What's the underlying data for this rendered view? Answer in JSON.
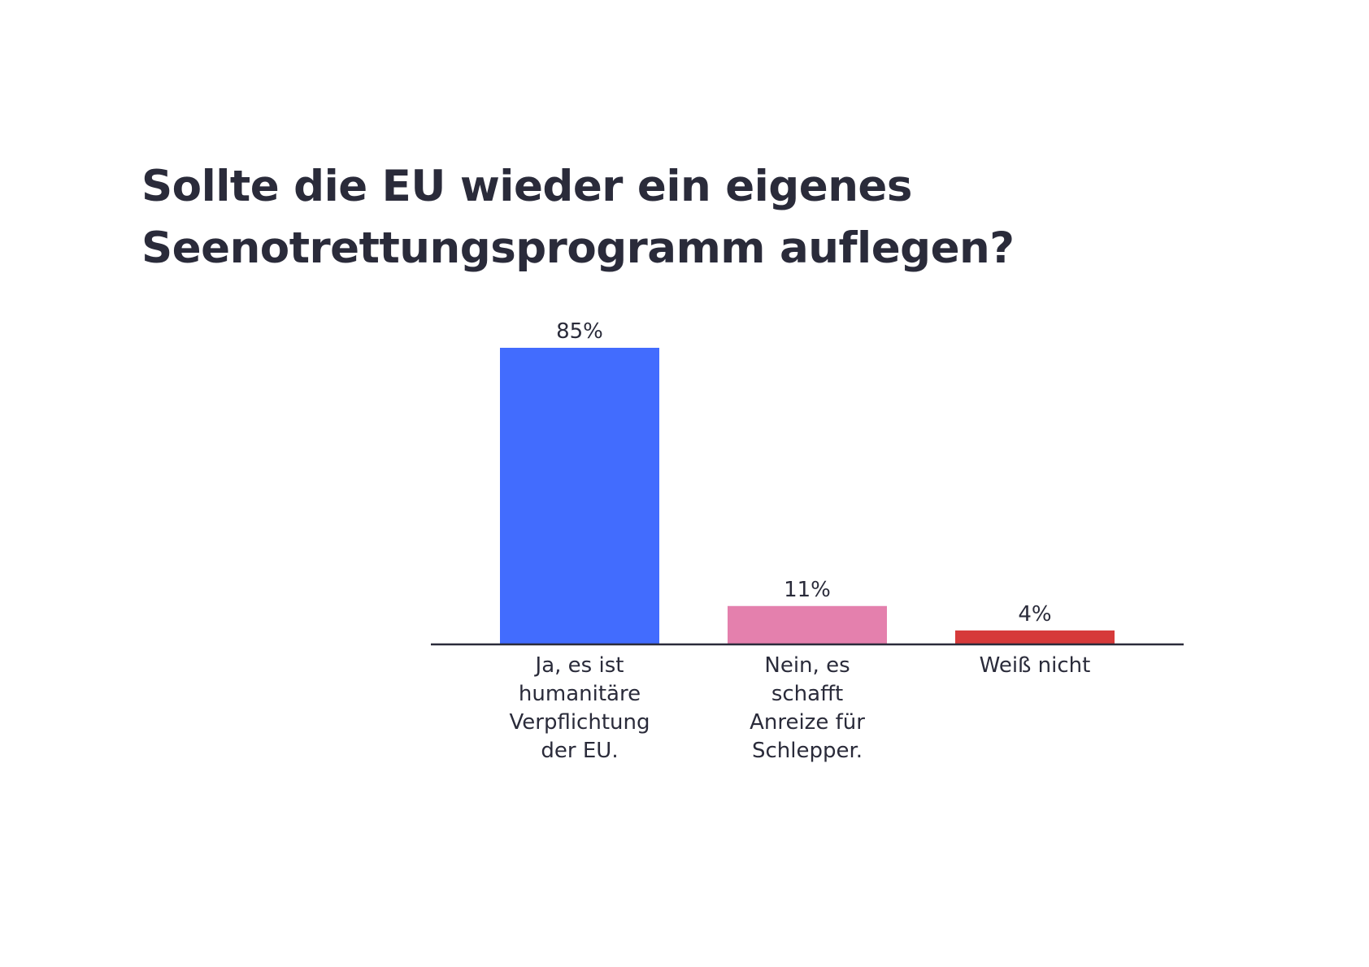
{
  "title_lines": [
    "Sollte die EU wieder ein eigenes",
    "Seenotrettungsprogramm auflegen?"
  ],
  "chart_data": {
    "type": "bar",
    "title": "Sollte die EU wieder ein eigenes Seenotrettungsprogramm auflegen?",
    "categories": [
      [
        "Ja, es ist",
        "humanitäre",
        "Verpflichtung",
        "der EU."
      ],
      [
        "Nein, es",
        "schafft",
        "Anreize für",
        "Schlepper."
      ],
      [
        "Weiß nicht"
      ]
    ],
    "values": [
      85,
      11,
      4
    ],
    "value_labels": [
      "85%",
      "11%",
      "4%"
    ],
    "colors": [
      "#426cfe",
      "#e480ad",
      "#d63a3a"
    ],
    "ylim": [
      0,
      85
    ],
    "grid": false,
    "legend": "none",
    "xlabel": "",
    "ylabel": ""
  }
}
